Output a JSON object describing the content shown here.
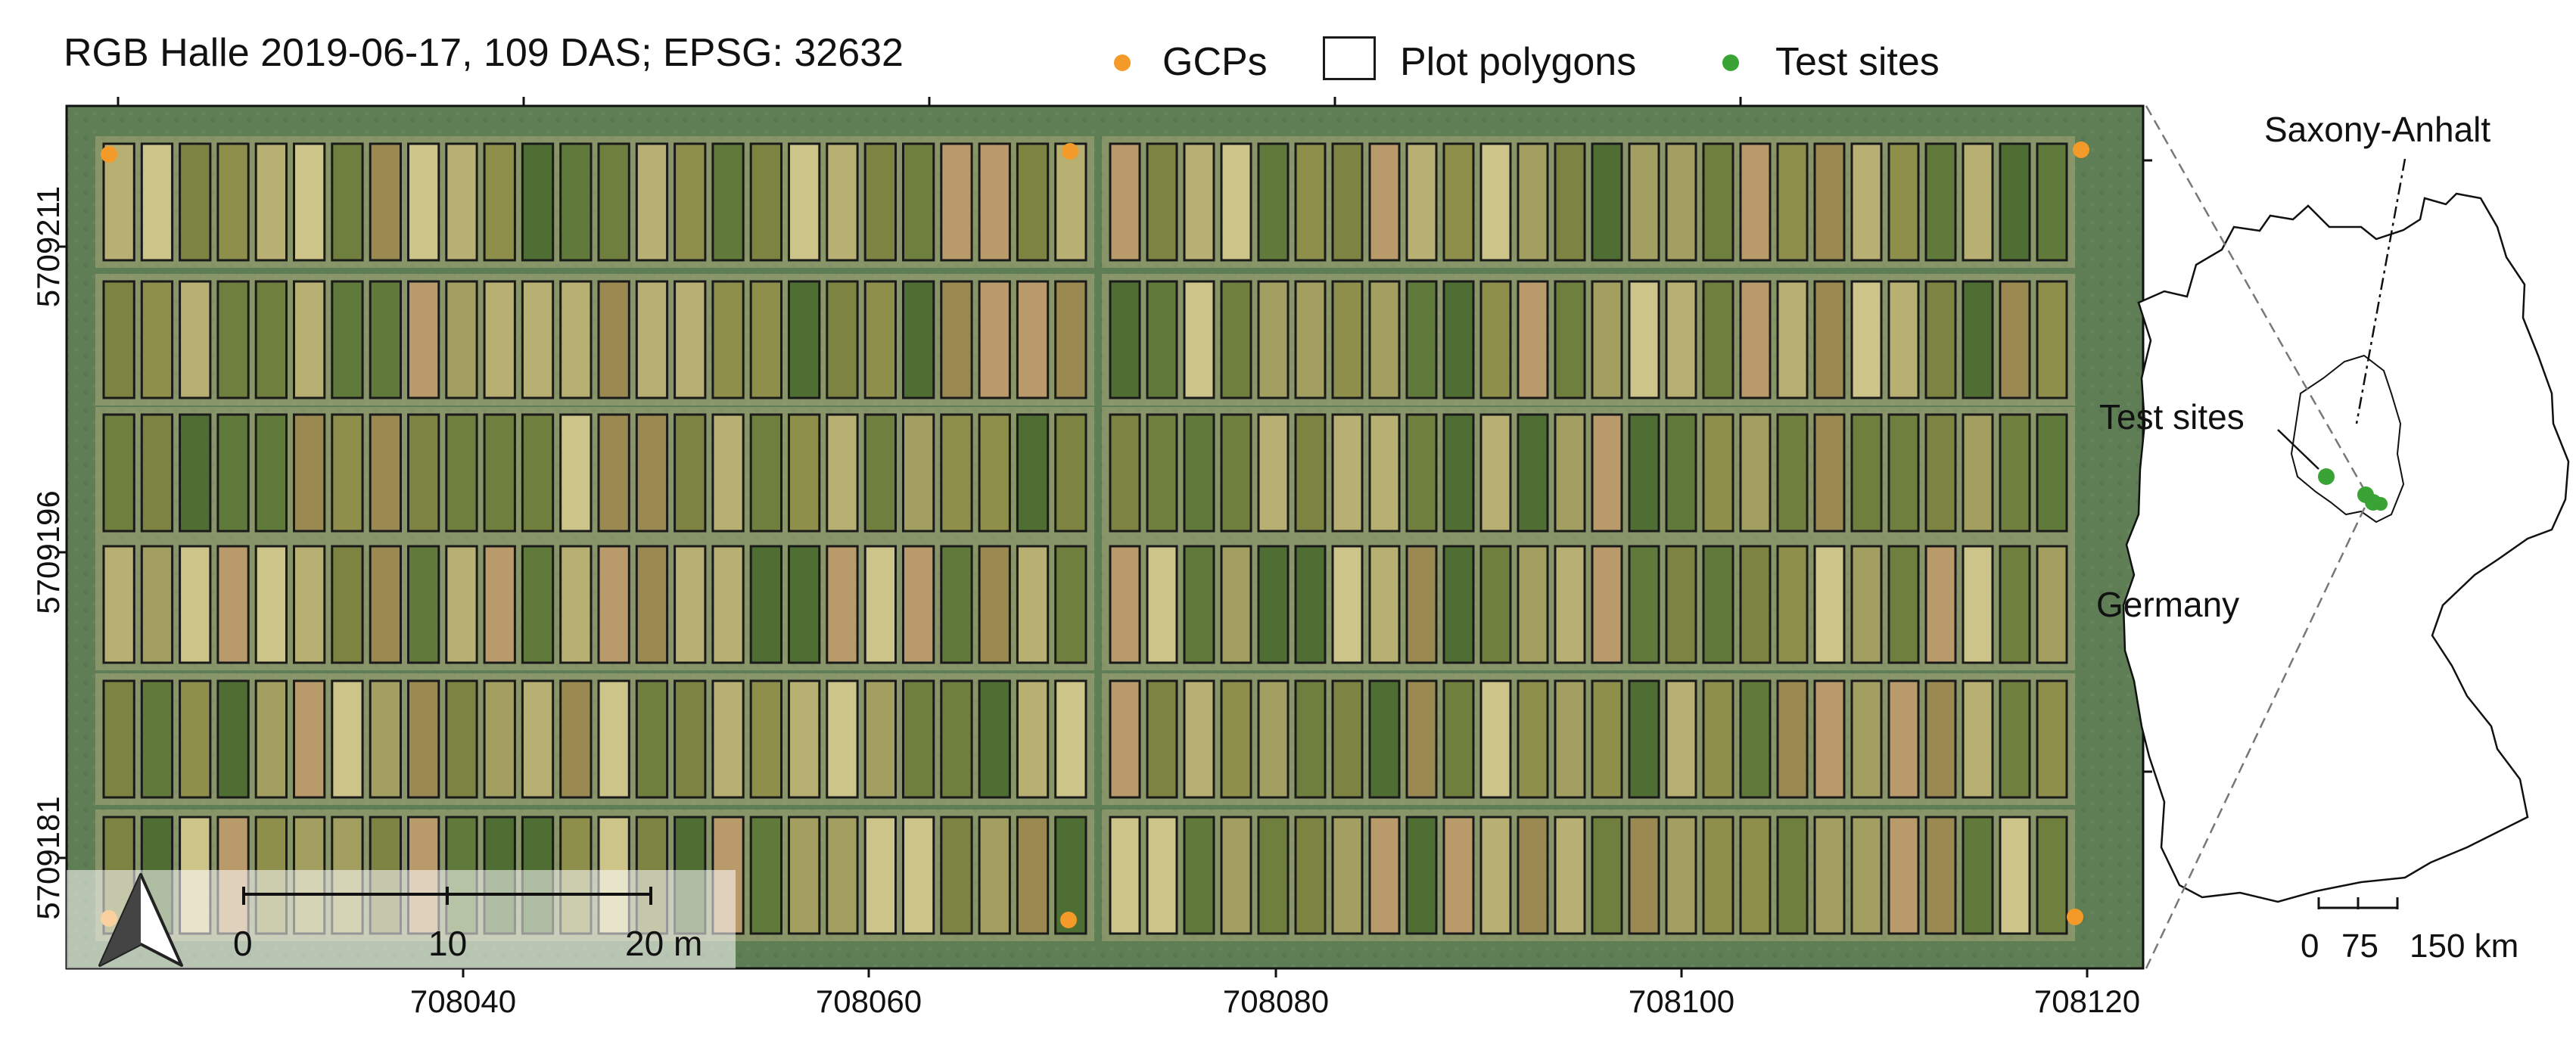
{
  "title": "RGB Halle 2019-06-17, 109 DAS; EPSG: 32632",
  "legend": {
    "items": [
      {
        "label": "GCPs",
        "symbol": "point",
        "color": "#f39a28"
      },
      {
        "label": "Plot polygons",
        "symbol": "box",
        "color": "#1a1a1a"
      },
      {
        "label": "Test sites",
        "symbol": "point",
        "color": "#3aa335"
      }
    ]
  },
  "axes": {
    "x_ticks": [
      {
        "label": "708040",
        "value": 708040
      },
      {
        "label": "708060",
        "value": 708060
      },
      {
        "label": "708080",
        "value": 708080
      },
      {
        "label": "708100",
        "value": 708100
      },
      {
        "label": "708120",
        "value": 708120
      }
    ],
    "y_ticks": [
      {
        "label": "5709211",
        "value": 5709211
      },
      {
        "label": "5709196",
        "value": 5709196
      },
      {
        "label": "5709181",
        "value": 5709181
      }
    ]
  },
  "scalebar_main": {
    "labels": [
      "0",
      "10",
      "20 m"
    ],
    "ticks_m": [
      0,
      10,
      20
    ]
  },
  "inset": {
    "region_label": "Saxony-Anhalt",
    "sites_label": "Test sites",
    "country_label": "Germany",
    "scale_labels": [
      "0",
      "75",
      "150 km"
    ],
    "scale_ticks_km": [
      0,
      75,
      150
    ]
  },
  "colors": {
    "grass": "#5e7d54",
    "gcp": "#f39a28",
    "site": "#3aa335",
    "plot_outline": "#1a1a1a",
    "plot_palette": [
      "#6f7f3e",
      "#7d8442",
      "#8f8f4c",
      "#a39f61",
      "#b8b073",
      "#cdc48a",
      "#5f7a3a",
      "#4f6e33",
      "#9a8a52",
      "#b99a6a"
    ]
  }
}
